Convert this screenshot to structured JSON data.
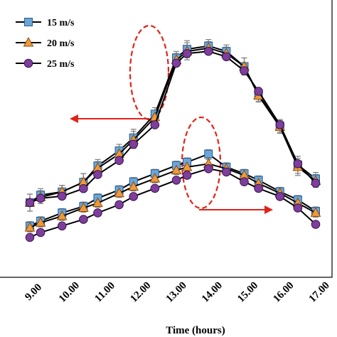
{
  "chart_data": {
    "type": "line",
    "xlabel": "Time (hours)",
    "ylabel": "",
    "title": "",
    "x_tick_labels": [
      "9.00",
      "10.00",
      "11.00",
      "12.00",
      "13.00",
      "14.00",
      "15.00",
      "16.00",
      "17.00"
    ],
    "xlim": [
      9,
      17
    ],
    "legend_position": "top-left",
    "colors": {
      "s15": "#6CA6D9",
      "s20": "#ED9A3C",
      "s25": "#7E3E9C",
      "error": "#808080",
      "annot": "#E0231B"
    },
    "groups": [
      {
        "name": "upper",
        "series": [
          {
            "name": "15 m/s",
            "marker": "square",
            "points": [
              [
                9.0,
                0.0
              ],
              [
                9.3,
                0.7
              ],
              [
                9.9,
                1.0
              ],
              [
                10.5,
                1.9
              ],
              [
                10.9,
                3.4
              ],
              [
                11.5,
                4.8
              ],
              [
                11.9,
                6.0
              ],
              [
                12.5,
                8.2
              ],
              [
                13.1,
                13.4
              ],
              [
                13.4,
                14.2
              ],
              [
                14.0,
                14.5
              ],
              [
                14.5,
                14.0
              ],
              [
                15.0,
                12.6
              ],
              [
                15.4,
                10.0
              ],
              [
                16.0,
                7.1
              ],
              [
                16.5,
                3.5
              ],
              [
                17.0,
                2.2
              ]
            ]
          },
          {
            "name": "20 m/s",
            "marker": "triangle",
            "points": [
              [
                9.0,
                0.0
              ],
              [
                9.3,
                0.5
              ],
              [
                9.9,
                1.0
              ],
              [
                10.5,
                1.9
              ],
              [
                10.9,
                3.2
              ],
              [
                11.5,
                4.5
              ],
              [
                11.9,
                5.8
              ],
              [
                12.5,
                7.9
              ],
              [
                13.1,
                13.2
              ],
              [
                13.4,
                14.0
              ],
              [
                14.0,
                14.3
              ],
              [
                14.5,
                13.8
              ],
              [
                15.0,
                12.6
              ],
              [
                15.4,
                9.9
              ],
              [
                16.0,
                7.0
              ],
              [
                16.5,
                3.3
              ],
              [
                17.0,
                2.0
              ]
            ]
          },
          {
            "name": "25 m/s",
            "marker": "circle",
            "points": [
              [
                9.0,
                0.0
              ],
              [
                9.3,
                0.4
              ],
              [
                9.9,
                0.6
              ],
              [
                10.5,
                1.3
              ],
              [
                10.9,
                2.6
              ],
              [
                11.5,
                3.9
              ],
              [
                11.9,
                5.4
              ],
              [
                12.5,
                7.2
              ],
              [
                13.1,
                12.9
              ],
              [
                13.4,
                13.8
              ],
              [
                14.0,
                14.0
              ],
              [
                14.5,
                13.5
              ],
              [
                15.0,
                12.2
              ],
              [
                15.4,
                10.3
              ],
              [
                16.0,
                7.2
              ],
              [
                16.5,
                3.6
              ],
              [
                17.0,
                1.8
              ]
            ]
          }
        ]
      },
      {
        "name": "lower",
        "series": [
          {
            "name": "15 m/s",
            "marker": "square",
            "points": [
              [
                9.0,
                0.4
              ],
              [
                9.3,
                0.7
              ],
              [
                9.9,
                1.2
              ],
              [
                10.5,
                1.6
              ],
              [
                10.9,
                2.1
              ],
              [
                11.5,
                2.6
              ],
              [
                11.9,
                3.1
              ],
              [
                12.5,
                3.6
              ],
              [
                13.1,
                4.1
              ],
              [
                13.4,
                4.3
              ],
              [
                14.0,
                4.8
              ],
              [
                14.5,
                4.0
              ],
              [
                15.0,
                3.6
              ],
              [
                15.4,
                3.2
              ],
              [
                16.0,
                2.5
              ],
              [
                16.5,
                2.0
              ],
              [
                17.0,
                1.3
              ]
            ]
          },
          {
            "name": "20 m/s",
            "marker": "triangle",
            "points": [
              [
                9.0,
                0.3
              ],
              [
                9.3,
                0.6
              ],
              [
                9.9,
                1.0
              ],
              [
                10.5,
                1.5
              ],
              [
                10.9,
                1.8
              ],
              [
                11.5,
                2.4
              ],
              [
                11.9,
                2.8
              ],
              [
                12.5,
                3.3
              ],
              [
                13.1,
                3.8
              ],
              [
                13.4,
                4.0
              ],
              [
                14.0,
                4.2
              ],
              [
                14.5,
                3.9
              ],
              [
                15.0,
                3.5
              ],
              [
                15.4,
                3.0
              ],
              [
                16.0,
                2.4
              ],
              [
                16.5,
                1.8
              ],
              [
                17.0,
                1.2
              ]
            ]
          },
          {
            "name": "25 m/s",
            "marker": "circle",
            "points": [
              [
                9.0,
                -0.3
              ],
              [
                9.3,
                0.0
              ],
              [
                9.9,
                0.4
              ],
              [
                10.5,
                0.8
              ],
              [
                10.9,
                1.2
              ],
              [
                11.5,
                1.7
              ],
              [
                11.9,
                2.2
              ],
              [
                12.5,
                2.7
              ],
              [
                13.1,
                3.2
              ],
              [
                13.4,
                3.5
              ],
              [
                14.0,
                3.9
              ],
              [
                14.5,
                3.7
              ],
              [
                15.0,
                3.1
              ],
              [
                15.4,
                2.7
              ],
              [
                16.0,
                2.2
              ],
              [
                16.5,
                1.5
              ],
              [
                17.0,
                0.5
              ]
            ]
          }
        ]
      }
    ],
    "annotations": [
      {
        "type": "dashed-ellipse",
        "around": "12.00-12.80 upper peak"
      },
      {
        "type": "arrow",
        "direction": "left"
      },
      {
        "type": "dashed-ellipse",
        "around": "14.00 lower peak"
      },
      {
        "type": "arrow",
        "direction": "right"
      }
    ]
  }
}
